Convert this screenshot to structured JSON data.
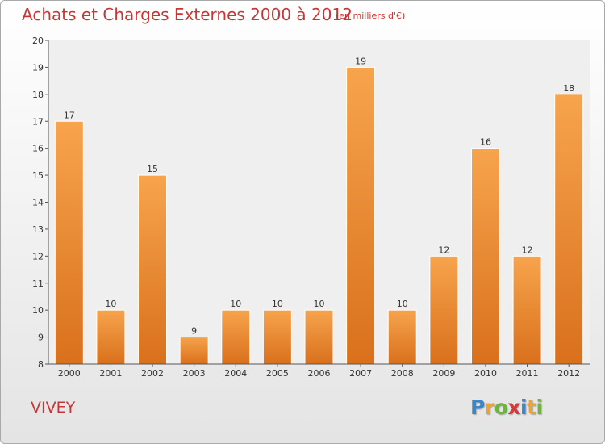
{
  "header": {
    "title": "Achats et Charges Externes 2000 à 2012",
    "subtitle": "(en milliers d'€)"
  },
  "footer": {
    "commune": "VIVEY",
    "logo_letters": [
      {
        "ch": "P",
        "color": "#3a86c8"
      },
      {
        "ch": "r",
        "color": "#e8a33d"
      },
      {
        "ch": "o",
        "color": "#6fb43f"
      },
      {
        "ch": "x",
        "color": "#d63a3a"
      },
      {
        "ch": "i",
        "color": "#3a86c8"
      },
      {
        "ch": "t",
        "color": "#e8a33d"
      },
      {
        "ch": "i",
        "color": "#6fb43f"
      }
    ]
  },
  "colors": {
    "bar_light": "#f7a44d",
    "bar_dark": "#d9701c",
    "title": "#cc3333"
  },
  "chart_data": {
    "type": "bar",
    "title": "Achats et Charges Externes 2000 à 2012",
    "subtitle": "(en milliers d'€)",
    "categories": [
      "2000",
      "2001",
      "2002",
      "2003",
      "2004",
      "2005",
      "2006",
      "2007",
      "2008",
      "2009",
      "2010",
      "2011",
      "2012"
    ],
    "values": [
      17,
      10,
      15,
      9,
      10,
      10,
      10,
      19,
      10,
      12,
      16,
      12,
      18
    ],
    "ylim": [
      8,
      20
    ],
    "yticks": [
      8,
      9,
      10,
      11,
      12,
      13,
      14,
      15,
      16,
      17,
      18,
      19,
      20
    ],
    "grid": false,
    "data_labels": true
  }
}
